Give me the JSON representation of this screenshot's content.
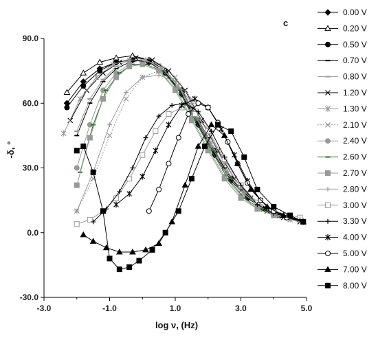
{
  "chart_data": {
    "type": "line",
    "panel_label": "c",
    "xlabel": "log ν, (Hz)",
    "ylabel": "-δ, °",
    "xlim": [
      -3.0,
      5.0
    ],
    "ylim": [
      -30.0,
      90.0
    ],
    "x_ticks": [
      "-3.0",
      "-1.0",
      "1.0",
      "3.0",
      "5.0"
    ],
    "y_ticks": [
      "-30.0",
      "0.0",
      "30.0",
      "60.0",
      "90.0"
    ],
    "grid": false,
    "legend_position": "right",
    "series": [
      {
        "name": "0.00 V",
        "marker": "diamond",
        "color": "#000000",
        "line": "solid",
        "x": [
          -2.3,
          -1.8,
          -1.3,
          -0.8,
          -0.3,
          0.2,
          0.7,
          1.2,
          1.7,
          2.2,
          2.7,
          3.2,
          3.7,
          4.2,
          4.8
        ],
        "y": [
          60,
          70,
          76,
          79,
          80,
          79,
          74,
          64,
          50,
          36,
          24,
          16,
          11,
          8,
          6
        ]
      },
      {
        "name": "0.20 V",
        "marker": "triangle-open",
        "color": "#000000",
        "line": "solid",
        "x": [
          -2.3,
          -1.8,
          -1.3,
          -0.8,
          -0.3,
          0.2,
          0.7,
          1.2,
          1.7,
          2.2,
          2.7,
          3.2,
          3.7,
          4.2,
          4.8
        ],
        "y": [
          65,
          74,
          79,
          81,
          82,
          80,
          75,
          66,
          52,
          38,
          25,
          17,
          11,
          8,
          6
        ]
      },
      {
        "name": "0.50 V",
        "marker": "circle",
        "color": "#000000",
        "line": "solid",
        "x": [
          -2.3,
          -1.8,
          -1.3,
          -0.8,
          -0.3,
          0.2,
          0.7,
          1.2,
          1.7,
          2.2,
          2.7,
          3.2,
          3.7,
          4.2,
          4.8
        ],
        "y": [
          58,
          68,
          75,
          79,
          80,
          79,
          74,
          65,
          51,
          37,
          25,
          16,
          11,
          8,
          6
        ]
      },
      {
        "name": "0.70 V",
        "marker": "dash",
        "color": "#000000",
        "line": "solid",
        "x": [
          -2.0,
          -1.6,
          -1.2,
          -0.8,
          -0.4,
          0.0,
          0.5,
          1.0,
          1.5,
          2.0,
          2.5,
          3.0,
          3.5,
          4.0,
          4.8
        ],
        "y": [
          45,
          60,
          70,
          76,
          79,
          80,
          78,
          70,
          58,
          44,
          30,
          20,
          13,
          9,
          6
        ]
      },
      {
        "name": "0.80 V",
        "marker": "dash",
        "color": "#999999",
        "line": "solid",
        "x": [
          -2.0,
          -1.6,
          -1.2,
          -0.8,
          -0.4,
          0.0,
          0.5,
          1.0,
          1.5,
          2.0,
          2.5,
          3.0,
          3.5,
          4.0,
          4.8
        ],
        "y": [
          47,
          62,
          71,
          77,
          80,
          80,
          78,
          70,
          57,
          43,
          29,
          19,
          13,
          9,
          6
        ]
      },
      {
        "name": "1.20 V",
        "marker": "x",
        "color": "#000000",
        "line": "solid",
        "x": [
          -2.2,
          -1.7,
          -1.2,
          -0.7,
          -0.2,
          0.3,
          0.8,
          1.3,
          1.8,
          2.3,
          2.8,
          3.3,
          3.8,
          4.3,
          4.8
        ],
        "y": [
          52,
          66,
          74,
          79,
          81,
          80,
          75,
          66,
          52,
          38,
          25,
          16,
          10,
          7,
          5
        ]
      },
      {
        "name": "1.30 V",
        "marker": "asterisk",
        "color": "#999999",
        "line": "solid",
        "x": [
          -2.4,
          -1.9,
          -1.4,
          -0.9,
          -0.4,
          0.1,
          0.6,
          1.1,
          1.6,
          2.1,
          2.6,
          3.1,
          3.6,
          4.1,
          4.8
        ],
        "y": [
          46,
          62,
          72,
          78,
          80,
          80,
          76,
          68,
          55,
          41,
          28,
          18,
          12,
          8,
          6
        ]
      },
      {
        "name": "2.10 V",
        "marker": "x",
        "color": "#999999",
        "line": "dotted",
        "x": [
          -2.0,
          -1.5,
          -1.0,
          -0.5,
          0.0,
          0.5,
          1.0,
          1.5,
          2.0,
          2.5,
          3.0,
          3.5,
          4.0,
          4.5,
          4.9
        ],
        "y": [
          10,
          25,
          45,
          62,
          72,
          75,
          72,
          62,
          48,
          33,
          21,
          13,
          9,
          6,
          5
        ]
      },
      {
        "name": "2.40 V",
        "marker": "circle",
        "color": "#999999",
        "line": "solid",
        "x": [
          -2.0,
          -1.6,
          -1.2,
          -0.8,
          -0.4,
          0.0,
          0.5,
          1.0,
          1.5,
          2.0,
          2.5,
          3.0,
          3.5,
          4.0,
          4.8
        ],
        "y": [
          30,
          50,
          66,
          74,
          78,
          78,
          75,
          67,
          53,
          39,
          26,
          17,
          11,
          8,
          6
        ]
      },
      {
        "name": "2.60 V",
        "marker": "dash",
        "color": "#1a7a1a",
        "line": "solid",
        "x": [
          -1.9,
          -1.5,
          -1.1,
          -0.7,
          -0.3,
          0.1,
          0.6,
          1.1,
          1.6,
          2.1,
          2.6,
          3.1,
          3.6,
          4.1,
          4.8
        ],
        "y": [
          28,
          50,
          66,
          74,
          78,
          78,
          75,
          66,
          52,
          38,
          25,
          16,
          11,
          8,
          6
        ]
      },
      {
        "name": "2.70 V",
        "marker": "square",
        "color": "#999999",
        "line": "solid",
        "x": [
          -2.0,
          -1.6,
          -1.2,
          -0.8,
          -0.4,
          0.0,
          0.5,
          1.0,
          1.5,
          2.0,
          2.5,
          3.0,
          3.5,
          4.0,
          4.8
        ],
        "y": [
          22,
          44,
          62,
          72,
          77,
          78,
          75,
          66,
          52,
          38,
          25,
          16,
          11,
          8,
          6
        ]
      },
      {
        "name": "2.80 V",
        "marker": "plus",
        "color": "#999999",
        "line": "solid",
        "x": [
          -2.0,
          -1.5,
          -1.0,
          -0.5,
          0.0,
          0.5,
          1.0,
          1.5,
          2.0,
          2.5,
          3.0,
          3.5,
          4.0,
          4.5,
          4.9
        ],
        "y": [
          10,
          28,
          50,
          65,
          72,
          73,
          70,
          60,
          46,
          32,
          21,
          13,
          9,
          6,
          5
        ]
      },
      {
        "name": "3.00 V",
        "marker": "square-open",
        "color": "#999999",
        "line": "solid",
        "x": [
          -2.0,
          -1.6,
          -1.2,
          -0.8,
          -0.4,
          0.0,
          0.4,
          0.8,
          1.2,
          1.6,
          2.0,
          2.5,
          3.0,
          3.5,
          4.0,
          4.8
        ],
        "y": [
          4,
          6,
          10,
          16,
          25,
          36,
          47,
          55,
          58,
          55,
          47,
          34,
          22,
          14,
          10,
          7
        ]
      },
      {
        "name": "3.30 V",
        "marker": "plus",
        "color": "#000000",
        "line": "solid",
        "x": [
          -1.5,
          -1.1,
          -0.7,
          -0.3,
          0.1,
          0.5,
          0.9,
          1.3,
          1.7,
          2.1,
          2.5,
          3.0,
          3.5,
          4.0,
          4.8
        ],
        "y": [
          5,
          11,
          19,
          30,
          44,
          54,
          59,
          60,
          56,
          47,
          35,
          22,
          13,
          9,
          6
        ]
      },
      {
        "name": "4.00 V",
        "marker": "asterisk",
        "color": "#000000",
        "line": "solid",
        "x": [
          -0.8,
          -0.4,
          0.0,
          0.4,
          0.8,
          1.2,
          1.6,
          2.0,
          2.4,
          2.8,
          3.2,
          3.6,
          4.0,
          4.4,
          4.9
        ],
        "y": [
          13,
          18,
          26,
          38,
          50,
          59,
          62,
          58,
          48,
          36,
          24,
          15,
          10,
          7,
          5
        ]
      },
      {
        "name": "5.00 V",
        "marker": "circle-open",
        "color": "#000000",
        "line": "solid",
        "x": [
          0.2,
          0.5,
          0.8,
          1.1,
          1.4,
          1.7,
          2.0,
          2.3,
          2.6,
          2.9,
          3.2,
          3.6,
          4.0,
          4.4,
          4.9
        ],
        "y": [
          10,
          20,
          32,
          44,
          55,
          60,
          58,
          51,
          42,
          32,
          23,
          15,
          10,
          7,
          5
        ]
      },
      {
        "name": "7.00 V",
        "marker": "triangle",
        "color": "#000000",
        "line": "solid",
        "x": [
          -1.8,
          -1.5,
          -1.1,
          -0.7,
          -0.3,
          0.1,
          0.5,
          0.9,
          1.3,
          1.7,
          2.1,
          2.5,
          2.9,
          3.3,
          3.8,
          4.3,
          4.9
        ],
        "y": [
          -1,
          -4,
          -7,
          -9,
          -9,
          -8,
          -5,
          5,
          22,
          40,
          50,
          45,
          32,
          20,
          12,
          8,
          5
        ]
      },
      {
        "name": "8.00 V",
        "marker": "square",
        "color": "#000000",
        "line": "solid",
        "x": [
          -2.0,
          -1.8,
          -1.5,
          -1.2,
          -1.0,
          -0.7,
          -0.4,
          -0.1,
          0.3,
          0.7,
          1.1,
          1.5,
          1.9,
          2.3,
          2.7,
          3.1,
          3.5,
          4.0,
          4.5,
          4.9
        ],
        "y": [
          38,
          40,
          28,
          10,
          -12,
          -17,
          -16,
          -13,
          -8,
          0,
          10,
          25,
          40,
          50,
          47,
          35,
          20,
          12,
          8,
          5
        ]
      }
    ]
  }
}
